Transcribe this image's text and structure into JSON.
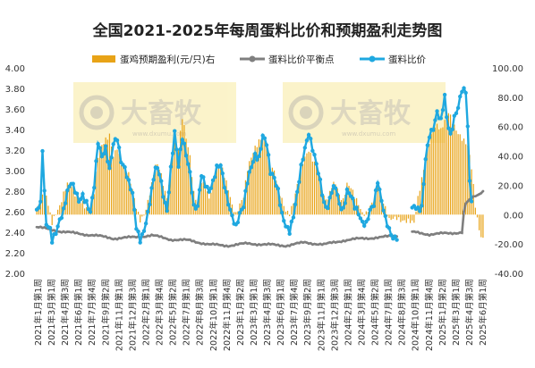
{
  "chart_data": {
    "type": "bar+line",
    "title": "全国2021-2025年每周蛋料比价和预期盈利走势图",
    "legend": [
      "蛋鸡预期盈利(元/只)右",
      "蛋料比价平衡点",
      "蛋料比价"
    ],
    "legend_position": "top",
    "watermark": "大畜牧",
    "watermark_url": "www.dxumu.com",
    "colors": {
      "profit": "#E8A317",
      "balance": "#7F7F7F",
      "ratio": "#1FA8E0",
      "watermark_box": "#FBF3C8"
    },
    "y_left": {
      "min": 2.0,
      "max": 4.0,
      "step": 0.2,
      "ticks": [
        "2.00",
        "2.20",
        "2.40",
        "2.60",
        "2.80",
        "3.00",
        "3.20",
        "3.40",
        "3.60",
        "3.80",
        "4.00"
      ]
    },
    "y_right": {
      "min": -40,
      "max": 100,
      "step": 20,
      "ticks": [
        "-40.00",
        "-20.00",
        "0.00",
        "20.00",
        "40.00",
        "60.00",
        "80.00",
        "100.00"
      ]
    },
    "x_labels": [
      "2021年1月第1周",
      "2021年3月第1周",
      "2021年4月第3周",
      "2021年6月第1周",
      "2021年7月第4周",
      "2021年9月第2周",
      "2021年11月第1周",
      "2021年12月第3周",
      "2022年2月第1周",
      "2022年3月第4周",
      "2022年5月第2周",
      "2022年7月第1周",
      "2022年8月第3周",
      "2022年10月第1周",
      "2022年11月第4周",
      "2023年1月第2周",
      "2023年3月第1周",
      "2023年4月第3周",
      "2023年6月第1周",
      "2023年7月第4周",
      "2023年9月第2周",
      "2023年11月第1周",
      "2023年12月第3周",
      "2024年2月第1周",
      "2024年3月第4周",
      "2024年5月第2周",
      "2024年7月第1周",
      "2024年8月第3周",
      "2024年10月第1周",
      "2024年11月第4周",
      "2025年1月第2周",
      "2025年3月第1周",
      "2025年4月第3周",
      "2025年6月第1周"
    ],
    "n_weeks": 234,
    "ratio_series": {
      "name": "蛋料比价",
      "gaps": [
        [
          189,
          196
        ],
        [
          228,
          234
        ]
      ],
      "anchors": [
        [
          0,
          2.62
        ],
        [
          2,
          2.65
        ],
        [
          3,
          3.18
        ],
        [
          4,
          2.75
        ],
        [
          5,
          2.45
        ],
        [
          7,
          2.42
        ],
        [
          8,
          2.33
        ],
        [
          10,
          2.43
        ],
        [
          12,
          2.55
        ],
        [
          14,
          2.62
        ],
        [
          16,
          2.78
        ],
        [
          18,
          2.85
        ],
        [
          20,
          2.78
        ],
        [
          22,
          2.7
        ],
        [
          24,
          2.78
        ],
        [
          26,
          2.72
        ],
        [
          28,
          2.62
        ],
        [
          30,
          2.85
        ],
        [
          32,
          3.25
        ],
        [
          34,
          3.1
        ],
        [
          36,
          3.2
        ],
        [
          38,
          3.02
        ],
        [
          40,
          3.3
        ],
        [
          42,
          3.35
        ],
        [
          44,
          3.1
        ],
        [
          46,
          3.0
        ],
        [
          48,
          2.85
        ],
        [
          50,
          2.75
        ],
        [
          52,
          2.45
        ],
        [
          54,
          2.35
        ],
        [
          56,
          2.45
        ],
        [
          58,
          2.6
        ],
        [
          60,
          2.8
        ],
        [
          62,
          3.0
        ],
        [
          64,
          2.95
        ],
        [
          66,
          2.75
        ],
        [
          68,
          2.62
        ],
        [
          70,
          3.05
        ],
        [
          72,
          3.4
        ],
        [
          74,
          3.05
        ],
        [
          76,
          3.3
        ],
        [
          78,
          3.12
        ],
        [
          80,
          2.95
        ],
        [
          82,
          2.65
        ],
        [
          84,
          2.68
        ],
        [
          86,
          3.0
        ],
        [
          88,
          2.88
        ],
        [
          90,
          2.78
        ],
        [
          92,
          2.85
        ],
        [
          94,
          3.0
        ],
        [
          96,
          3.05
        ],
        [
          98,
          2.88
        ],
        [
          100,
          2.72
        ],
        [
          102,
          2.58
        ],
        [
          104,
          2.45
        ],
        [
          106,
          2.55
        ],
        [
          108,
          2.62
        ],
        [
          110,
          2.88
        ],
        [
          112,
          3.05
        ],
        [
          114,
          3.18
        ],
        [
          116,
          3.15
        ],
        [
          118,
          3.35
        ],
        [
          120,
          3.25
        ],
        [
          122,
          2.95
        ],
        [
          124,
          2.9
        ],
        [
          126,
          2.8
        ],
        [
          128,
          2.6
        ],
        [
          130,
          2.5
        ],
        [
          132,
          2.43
        ],
        [
          134,
          2.55
        ],
        [
          136,
          2.75
        ],
        [
          138,
          3.0
        ],
        [
          140,
          3.2
        ],
        [
          142,
          3.38
        ],
        [
          144,
          3.25
        ],
        [
          146,
          3.1
        ],
        [
          148,
          2.9
        ],
        [
          150,
          2.65
        ],
        [
          152,
          2.6
        ],
        [
          154,
          2.78
        ],
        [
          156,
          2.85
        ],
        [
          158,
          2.7
        ],
        [
          160,
          2.65
        ],
        [
          162,
          2.82
        ],
        [
          164,
          2.75
        ],
        [
          166,
          2.62
        ],
        [
          168,
          2.55
        ],
        [
          170,
          2.48
        ],
        [
          172,
          2.5
        ],
        [
          174,
          2.65
        ],
        [
          176,
          2.7
        ],
        [
          178,
          2.9
        ],
        [
          180,
          2.68
        ],
        [
          182,
          2.5
        ],
        [
          184,
          2.4
        ],
        [
          186,
          2.35
        ],
        [
          188,
          2.38
        ],
        [
          197,
          2.62
        ],
        [
          199,
          2.6
        ],
        [
          201,
          2.65
        ],
        [
          203,
          3.15
        ],
        [
          205,
          3.38
        ],
        [
          207,
          3.42
        ],
        [
          209,
          3.55
        ],
        [
          211,
          3.45
        ],
        [
          213,
          3.7
        ],
        [
          214,
          3.5
        ],
        [
          216,
          3.35
        ],
        [
          218,
          3.55
        ],
        [
          220,
          3.65
        ],
        [
          222,
          3.8
        ],
        [
          224,
          3.75
        ],
        [
          225,
          3.4
        ],
        [
          226,
          3.1
        ],
        [
          227,
          2.95
        ]
      ]
    },
    "ratio_tail": {
      "start_week": 226,
      "values": [
        2.9,
        2.7,
        2.6,
        2.55,
        2.52,
        2.62,
        2.55,
        2.45,
        2.5,
        2.48,
        2.52,
        2.42,
        2.45,
        2.38
      ]
    },
    "balance_series": {
      "name": "蛋料比价平衡点",
      "anchors": [
        [
          0,
          2.45
        ],
        [
          6,
          2.43
        ],
        [
          12,
          2.41
        ],
        [
          20,
          2.39
        ],
        [
          30,
          2.37
        ],
        [
          40,
          2.34
        ],
        [
          50,
          2.35
        ],
        [
          60,
          2.37
        ],
        [
          70,
          2.33
        ],
        [
          80,
          2.32
        ],
        [
          90,
          2.28
        ],
        [
          100,
          2.27
        ],
        [
          110,
          2.29
        ],
        [
          120,
          2.28
        ],
        [
          130,
          2.27
        ],
        [
          140,
          2.3
        ],
        [
          150,
          2.28
        ],
        [
          160,
          2.32
        ],
        [
          170,
          2.34
        ],
        [
          180,
          2.35
        ],
        [
          188,
          2.37
        ],
        [
          197,
          2.4
        ],
        [
          205,
          2.38
        ],
        [
          215,
          2.39
        ],
        [
          222,
          2.4
        ]
      ]
    },
    "balance_tail": {
      "start_week": 222,
      "values": [
        2.6,
        2.68,
        2.7,
        2.72,
        2.73,
        2.75,
        2.75,
        2.76,
        2.77,
        2.78,
        2.8,
        2.82
      ]
    },
    "profit_series": {
      "name": "蛋鸡预期盈利(元/只)右",
      "anchors": [
        [
          0,
          5
        ],
        [
          2,
          8
        ],
        [
          4,
          18
        ],
        [
          6,
          5
        ],
        [
          8,
          -5
        ],
        [
          10,
          3
        ],
        [
          12,
          8
        ],
        [
          14,
          15
        ],
        [
          16,
          20
        ],
        [
          18,
          18
        ],
        [
          20,
          12
        ],
        [
          22,
          8
        ],
        [
          24,
          10
        ],
        [
          26,
          6
        ],
        [
          28,
          5
        ],
        [
          30,
          15
        ],
        [
          32,
          38
        ],
        [
          34,
          45
        ],
        [
          36,
          50
        ],
        [
          38,
          55
        ],
        [
          40,
          42
        ],
        [
          42,
          48
        ],
        [
          44,
          35
        ],
        [
          46,
          30
        ],
        [
          48,
          25
        ],
        [
          50,
          15
        ],
        [
          52,
          5
        ],
        [
          54,
          -2
        ],
        [
          56,
          2
        ],
        [
          58,
          10
        ],
        [
          60,
          20
        ],
        [
          62,
          32
        ],
        [
          64,
          30
        ],
        [
          66,
          20
        ],
        [
          68,
          12
        ],
        [
          70,
          35
        ],
        [
          72,
          50
        ],
        [
          74,
          45
        ],
        [
          76,
          65
        ],
        [
          78,
          50
        ],
        [
          80,
          38
        ],
        [
          82,
          15
        ],
        [
          84,
          10
        ],
        [
          86,
          25
        ],
        [
          88,
          20
        ],
        [
          90,
          10
        ],
        [
          92,
          18
        ],
        [
          94,
          30
        ],
        [
          96,
          35
        ],
        [
          98,
          28
        ],
        [
          100,
          20
        ],
        [
          102,
          8
        ],
        [
          104,
          0
        ],
        [
          106,
          5
        ],
        [
          108,
          10
        ],
        [
          110,
          30
        ],
        [
          112,
          40
        ],
        [
          114,
          48
        ],
        [
          116,
          52
        ],
        [
          118,
          55
        ],
        [
          120,
          48
        ],
        [
          122,
          30
        ],
        [
          124,
          28
        ],
        [
          126,
          18
        ],
        [
          128,
          12
        ],
        [
          130,
          5
        ],
        [
          132,
          2
        ],
        [
          134,
          8
        ],
        [
          136,
          18
        ],
        [
          138,
          30
        ],
        [
          140,
          38
        ],
        [
          142,
          45
        ],
        [
          144,
          40
        ],
        [
          146,
          35
        ],
        [
          148,
          25
        ],
        [
          150,
          10
        ],
        [
          152,
          8
        ],
        [
          154,
          18
        ],
        [
          156,
          22
        ],
        [
          158,
          15
        ],
        [
          160,
          12
        ],
        [
          162,
          22
        ],
        [
          164,
          18
        ],
        [
          166,
          10
        ],
        [
          168,
          5
        ],
        [
          170,
          0
        ],
        [
          172,
          2
        ],
        [
          174,
          8
        ],
        [
          176,
          12
        ],
        [
          178,
          20
        ],
        [
          180,
          10
        ],
        [
          182,
          2
        ],
        [
          184,
          -5
        ],
        [
          186,
          -2
        ],
        [
          188,
          0
        ],
        [
          197,
          -8
        ],
        [
          199,
          10
        ],
        [
          201,
          25
        ],
        [
          203,
          40
        ],
        [
          205,
          52
        ],
        [
          207,
          58
        ],
        [
          209,
          60
        ],
        [
          211,
          55
        ],
        [
          213,
          62
        ],
        [
          215,
          70
        ],
        [
          217,
          65
        ],
        [
          219,
          60
        ],
        [
          221,
          55
        ],
        [
          223,
          50
        ],
        [
          225,
          45
        ],
        [
          227,
          30
        ],
        [
          229,
          5
        ],
        [
          231,
          -10
        ],
        [
          233,
          -15
        ]
      ]
    }
  }
}
